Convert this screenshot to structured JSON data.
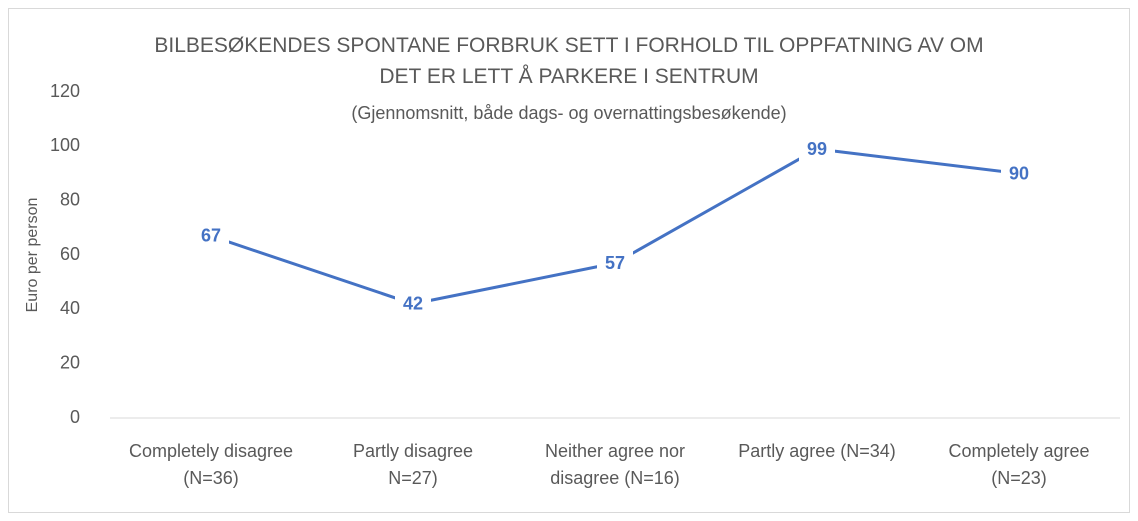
{
  "chart_data": {
    "type": "line",
    "title": "BILBESØKENDES SPONTANE FORBRUK SETT I FORHOLD TIL OPPFATNING AV OM DET ER LETT Å PARKERE I SENTRUM",
    "subtitle": "(Gjennomsnitt, både dags- og overnattingsbesøkende)",
    "y_label": "Euro per person",
    "categories": [
      "Completely disagree (N=36)",
      "Partly disagree N=27)",
      "Neither agree nor disagree (N=16)",
      "Partly agree (N=34)",
      "Completely agree (N=23)"
    ],
    "series": [
      {
        "name": "Euro per person",
        "color": "#4472c4",
        "values": [
          67,
          42,
          57,
          99,
          90
        ]
      }
    ],
    "ylim": [
      0,
      120
    ],
    "yticks": [
      0,
      20,
      40,
      60,
      80,
      100,
      120
    ],
    "grid": false
  }
}
